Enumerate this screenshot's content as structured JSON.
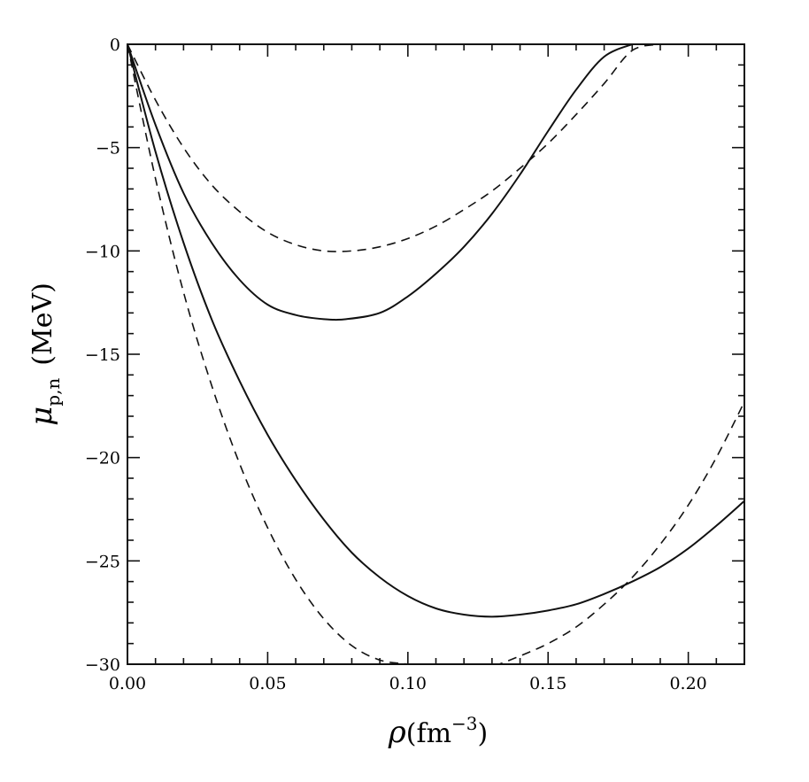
{
  "chart_data": {
    "type": "line",
    "xlabel": "ρ(fm⁻³)",
    "xlabel_main": "ρ",
    "xlabel_unit": "(fm",
    "xlabel_exp": "−3",
    "xlabel_close": ")",
    "ylabel": "μp,n (MeV)",
    "ylabel_main": "μ",
    "ylabel_sub": "p,n",
    "ylabel_unit": "(MeV)",
    "xlim": [
      0.0,
      0.22
    ],
    "ylim": [
      -30,
      0
    ],
    "x_major_ticks": [
      0.0,
      0.05,
      0.1,
      0.15,
      0.2
    ],
    "x_tick_labels": [
      "0.00",
      "0.05",
      "0.10",
      "0.15",
      "0.20"
    ],
    "y_major_ticks": [
      0,
      -5,
      -10,
      -15,
      -20,
      -25,
      -30
    ],
    "y_tick_labels": [
      "0",
      "-5",
      "-10",
      "-15",
      "-20",
      "-25",
      "-30"
    ],
    "x_minor_step": 0.01,
    "y_minor_step": 1,
    "grid": false,
    "legend": "none",
    "series": [
      {
        "style": "solid",
        "x": [
          0.0,
          0.01,
          0.02,
          0.03,
          0.04,
          0.05,
          0.06,
          0.07,
          0.078,
          0.09,
          0.1,
          0.11,
          0.12,
          0.13,
          0.14,
          0.15,
          0.16,
          0.17,
          0.18
        ],
        "y": [
          0.0,
          -3.9,
          -7.2,
          -9.6,
          -11.4,
          -12.6,
          -13.1,
          -13.3,
          -13.3,
          -13.0,
          -12.2,
          -11.1,
          -9.8,
          -8.2,
          -6.3,
          -4.2,
          -2.2,
          -0.6,
          0.0
        ]
      },
      {
        "style": "dashed",
        "x": [
          0.0,
          0.01,
          0.02,
          0.03,
          0.04,
          0.05,
          0.06,
          0.07,
          0.08,
          0.09,
          0.1,
          0.11,
          0.12,
          0.13,
          0.14,
          0.15,
          0.16,
          0.17,
          0.18,
          0.19
        ],
        "y": [
          0.0,
          -2.7,
          -5.0,
          -6.8,
          -8.1,
          -9.1,
          -9.7,
          -10.0,
          -10.0,
          -9.8,
          -9.4,
          -8.8,
          -8.0,
          -7.1,
          -6.0,
          -4.8,
          -3.4,
          -1.9,
          -0.3,
          0.0
        ]
      },
      {
        "style": "solid",
        "x": [
          0.0,
          0.01,
          0.02,
          0.03,
          0.04,
          0.05,
          0.06,
          0.07,
          0.08,
          0.09,
          0.1,
          0.11,
          0.12,
          0.13,
          0.14,
          0.15,
          0.16,
          0.17,
          0.18,
          0.19,
          0.2,
          0.21,
          0.22
        ],
        "y": [
          0.0,
          -5.2,
          -9.6,
          -13.3,
          -16.3,
          -18.9,
          -21.1,
          -23.0,
          -24.6,
          -25.8,
          -26.7,
          -27.3,
          -27.6,
          -27.7,
          -27.6,
          -27.4,
          -27.1,
          -26.6,
          -26.0,
          -25.3,
          -24.4,
          -23.3,
          -22.1
        ]
      },
      {
        "style": "dashed",
        "x": [
          0.0,
          0.01,
          0.02,
          0.03,
          0.04,
          0.05,
          0.06,
          0.07,
          0.08,
          0.09,
          0.1,
          0.11,
          0.12,
          0.13,
          0.14,
          0.15,
          0.16,
          0.17,
          0.18,
          0.19,
          0.2,
          0.21,
          0.22
        ],
        "y": [
          0.0,
          -6.5,
          -12.0,
          -16.5,
          -20.3,
          -23.4,
          -25.9,
          -27.8,
          -29.1,
          -29.8,
          -30.0,
          -30.2,
          -30.3,
          -30.1,
          -29.6,
          -29.0,
          -28.2,
          -27.1,
          -25.8,
          -24.2,
          -22.3,
          -20.0,
          -17.3
        ]
      }
    ]
  }
}
